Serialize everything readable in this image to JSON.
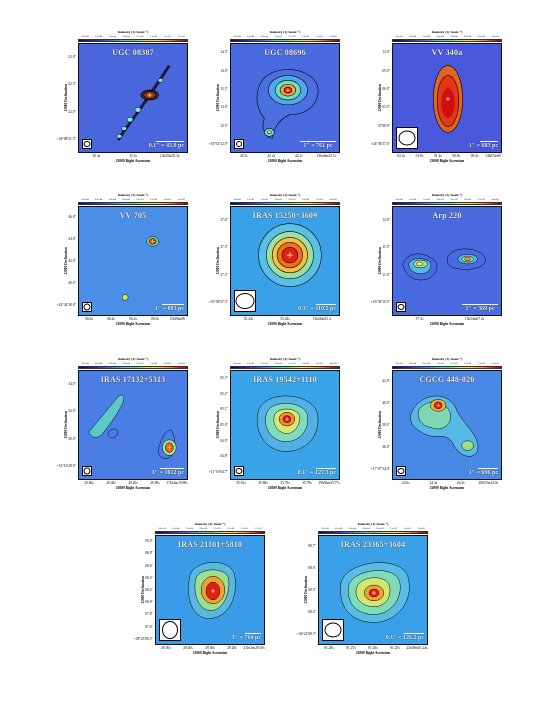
{
  "figure": {
    "colorbar_label": "Intensity (Jy beam⁻¹)",
    "xlabel": "J2000 Right Ascension",
    "ylabel": "J2000 Declination",
    "panels": [
      {
        "name": "UGC 08387",
        "scale": "0.1″ = 43.9 pc",
        "beam": "small",
        "bg": "#4a66dd",
        "cbar_ticks": [
          "3.0e-04",
          "5.0e-04",
          "7.0e-04",
          "9.0e-04",
          "1.1e-03",
          "1.3e-03",
          "1.5e-03",
          "1.7e-03"
        ],
        "yticks": [
          "23.0″",
          "22.5″",
          "22.0″",
          "+34°08′21.5″"
        ],
        "xticks": [
          "35.4s",
          "35.3s",
          "13h20m35.3s"
        ]
      },
      {
        "name": "UGC 08696",
        "scale": "1″ = 761 pc",
        "beam": "small",
        "bg": "#4a6ae0",
        "cbar_ticks": [
          "3.0e-04",
          "6.0e-04",
          "9.0e-04",
          "1.2e-03",
          "1.5e-03",
          "1.8e-03",
          "2.1e-03",
          "2.4e-03"
        ],
        "yticks": [
          "14.5″",
          "14.0″",
          "13.5″",
          "13.0″",
          "12.5″",
          "+55°53′12.0″"
        ],
        "xticks": [
          "42.3s",
          "42.2s",
          "42.1s",
          "13h44m42.1s"
        ]
      },
      {
        "name": "VV 340a",
        "scale": "1″ = 683 pc",
        "beam": "big",
        "bg": "#4a58dc",
        "cbar_ticks": [
          "3.0e-04",
          "4.0e-04",
          "5.0e-04",
          "6.0e-04",
          "7.0e-04",
          "8.0e-04",
          "9.0e-04",
          "1.0e-03"
        ],
        "yticks": [
          "12.0″",
          "09.0″",
          "06.0″",
          "03.0″",
          "37′00.0″",
          "+24°36′57.0″"
        ],
        "xticks": [
          "02.2s",
          "01.8s",
          "01.4s",
          "00.8s",
          "00.4s",
          "14h57m00"
        ]
      },
      {
        "name": "VV 705",
        "scale": "1″ = 803 pc",
        "beam": "small",
        "bg": "#4a8ee8",
        "cbar_ticks": [
          "2.0e-04",
          "4.0e-04",
          "6.0e-04",
          "8.0e-04",
          "1.0e-03",
          "1.2e-03",
          "1.4e-03",
          "1.6e-03"
        ],
        "yticks": [
          "46.0″",
          "44.0″",
          "42.0″",
          "40.0″",
          "+42°44′38.0″"
        ],
        "xticks": [
          "06.6s",
          "06.4s",
          "06.2s",
          "06.0s",
          "15h18m06"
        ]
      },
      {
        "name": "IRAS 15250+3609",
        "scale": "0.1″ = 110.5 pc",
        "beam": "big",
        "bg": "#3aa0e8",
        "cbar_ticks": [
          "5.0e-04",
          "1.0e-03",
          "1.5e-03",
          "2.0e-03",
          "2.5e-03",
          "3.0e-03",
          "3.5e-03",
          "4.0e-03"
        ],
        "yticks": [
          "37.6″",
          "37.5″",
          "37.4″",
          "+35°58′37.3″"
        ],
        "xticks": [
          "55.43s",
          "55.42s",
          "15h26m55.4"
        ]
      },
      {
        "name": "Arp 220",
        "scale": "1″ = 369 pc",
        "beam": "small",
        "bg": "#4a6ae0",
        "cbar_ticks": [
          "5.0e-04",
          "1.0e-03",
          "1.5e-03",
          "2.0e-03",
          "2.5e-03",
          "3.0e-03",
          "3.5e-03",
          "4.0e-03"
        ],
        "yticks": [
          "12.0″",
          "11.5″",
          "11.0″",
          "+23°30′10.5″"
        ],
        "xticks": [
          "57.3s",
          "15h34m57.2s"
        ]
      },
      {
        "name": "IRAS 17132+5313",
        "scale": "1″ = 1012 pc",
        "beam": "small",
        "bg": "#4a7ee4",
        "cbar_ticks": [
          "2.0e-04",
          "4.0e-04",
          "6.0e-04",
          "8.0e-04",
          "1.0e-03",
          "1.2e-03",
          "1.4e-03",
          "1.6e-03"
        ],
        "yticks": [
          "34.0″",
          "32.0″",
          "30.0″",
          "+53°10′28.0″"
        ],
        "xticks": [
          "20.60s",
          "20.40s",
          "20.20s",
          "20.00s",
          "17h14m19.80s"
        ]
      },
      {
        "name": "IRAS 19542+1110",
        "scale": "0.1″ = 127.3 pc",
        "beam": "small",
        "bg": "#3aa4e8",
        "cbar_ticks": [
          "5.0e-04",
          "1.0e-03",
          "1.5e-03",
          "2.0e-03",
          "2.5e-03",
          "3.0e-03",
          "3.5e-03",
          "4.0e-03"
        ],
        "yticks": [
          "05.3″",
          "05.2″",
          "05.1″",
          "05.0″",
          "04.9″",
          "04.8″",
          "+11°19′04.7″"
        ],
        "xticks": [
          "35.81s",
          "35.80s",
          "35.79s",
          "35.78s",
          "19h56m35.77s"
        ]
      },
      {
        "name": "CGCG 448-020",
        "scale": "1″ = 696 pc",
        "beam": "small",
        "bg": "#4a88e6",
        "cbar_ticks": [
          "3.0e-04",
          "6.0e-04",
          "9.0e-04",
          "1.2e-03",
          "1.5e-03",
          "1.8e-03",
          "2.1e-03",
          "2.4e-03"
        ],
        "yticks": [
          "42.0″",
          "40.0″",
          "38.0″",
          "36.0″",
          "+17°07′34.0″"
        ],
        "xticks": [
          "24.6s",
          "24.4s",
          "24.2s",
          "20h57m24.0s"
        ]
      },
      {
        "name": "IRAS 21101+5810",
        "scale": "1″ = 764 pc",
        "beam": "big",
        "bg": "#3a9ce8",
        "cbar_ticks": [
          "3.0e-04",
          "5.0e-04",
          "7.0e-04",
          "9.0e-04",
          "1.1e-03",
          "1.3e-03",
          "1.5e-03",
          "1.7e-03"
        ],
        "yticks": [
          "09.0″",
          "08.8″",
          "08.6″",
          "08.4″",
          "08.2″",
          "08.0″",
          "07.8″",
          "07.6″",
          "+58°23′06.5″"
        ],
        "xticks": [
          "29.50s",
          "29.40s",
          "29.30s",
          "29.20s",
          "21h11m29.10s"
        ]
      },
      {
        "name": "IRAS 23365+3604",
        "scale": "0.1″ = 126.2 pc",
        "beam": "big",
        "bg": "#3aa0e8",
        "cbar_ticks": [
          "2.0e-04",
          "4.0e-04",
          "6.0e-04",
          "8.0e-04",
          "1.0e-03",
          "1.2e-03",
          "1.4e-03",
          "1.6e-03"
        ],
        "yticks": [
          "08.7″",
          "08.6″",
          "08.5″",
          "08.4″",
          "+36°21′08.3″"
        ],
        "xticks": [
          "01.28s",
          "01.27s",
          "01.26s",
          "01.25s",
          "23h39m01.24s"
        ]
      }
    ]
  }
}
